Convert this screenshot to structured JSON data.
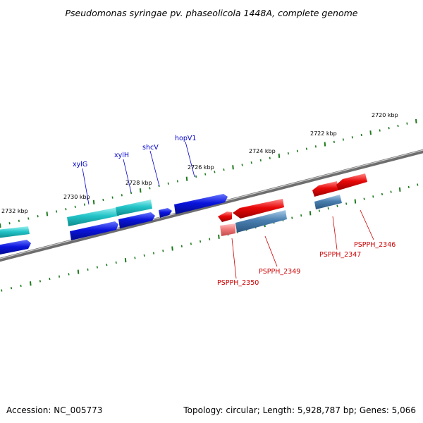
{
  "title": "Pseudomonas syringae pv. phaseolicola 1448A, complete genome",
  "footer": {
    "accession": "Accession: NC_005773",
    "summary": "Topology: circular; Length: 5,928,787 bp; Genes: 5,066"
  },
  "colors": {
    "backbone": "#7a7a7a",
    "tick": "#1e7a1e",
    "label_blue": "#0000cc",
    "label_red": "#cc0000",
    "gene_teal": "#22c4c8",
    "gene_blue": "#0a14dc",
    "gene_red": "#e80808",
    "gene_steel": "#4a7fb0",
    "gene_pink": "#f07878"
  },
  "scale_labels": [
    {
      "text": "2720 kbp"
    },
    {
      "text": "2722 kbp"
    },
    {
      "text": "2724 kbp"
    },
    {
      "text": "2726 kbp"
    },
    {
      "text": "2728 kbp"
    },
    {
      "text": "2730 kbp"
    },
    {
      "text": "2732 kbp"
    }
  ],
  "gene_labels": [
    {
      "text": "xylG",
      "color": "blue"
    },
    {
      "text": "xylH",
      "color": "blue"
    },
    {
      "text": "shcV",
      "color": "blue"
    },
    {
      "text": "hopV1",
      "color": "blue"
    },
    {
      "text": "PSPPH_2350",
      "color": "red"
    },
    {
      "text": "PSPPH_2349",
      "color": "red"
    },
    {
      "text": "PSPPH_2347",
      "color": "red"
    },
    {
      "text": "PSPPH_2346",
      "color": "red"
    }
  ]
}
